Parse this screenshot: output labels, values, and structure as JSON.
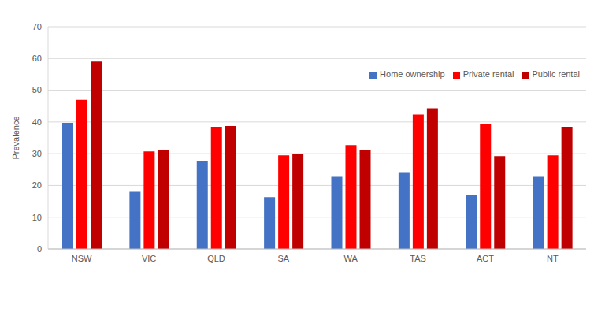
{
  "chart_data": {
    "type": "bar",
    "y_label": "Prevalence",
    "categories": [
      "NSW",
      "VIC",
      "QLD",
      "SA",
      "WA",
      "TAS",
      "ACT",
      "NT"
    ],
    "series": [
      {
        "name": "Home ownership",
        "color": "#4472c4",
        "values": [
          39.7,
          18,
          27.7,
          16.3,
          22.7,
          24.2,
          17,
          22.7
        ]
      },
      {
        "name": "Private rental",
        "color": "#ff0000",
        "values": [
          47,
          30.7,
          38.5,
          29.5,
          32.7,
          42.3,
          39.2,
          29.5
        ]
      },
      {
        "name": "Public rental",
        "color": "#c00000",
        "values": [
          59,
          31.2,
          38.7,
          30,
          31.2,
          44.3,
          29.2,
          38.5
        ]
      }
    ],
    "ylim": [
      0,
      70
    ],
    "yticks": [
      0,
      10,
      20,
      30,
      40,
      50,
      60,
      70
    ],
    "grid": true,
    "legend": "upper right"
  }
}
